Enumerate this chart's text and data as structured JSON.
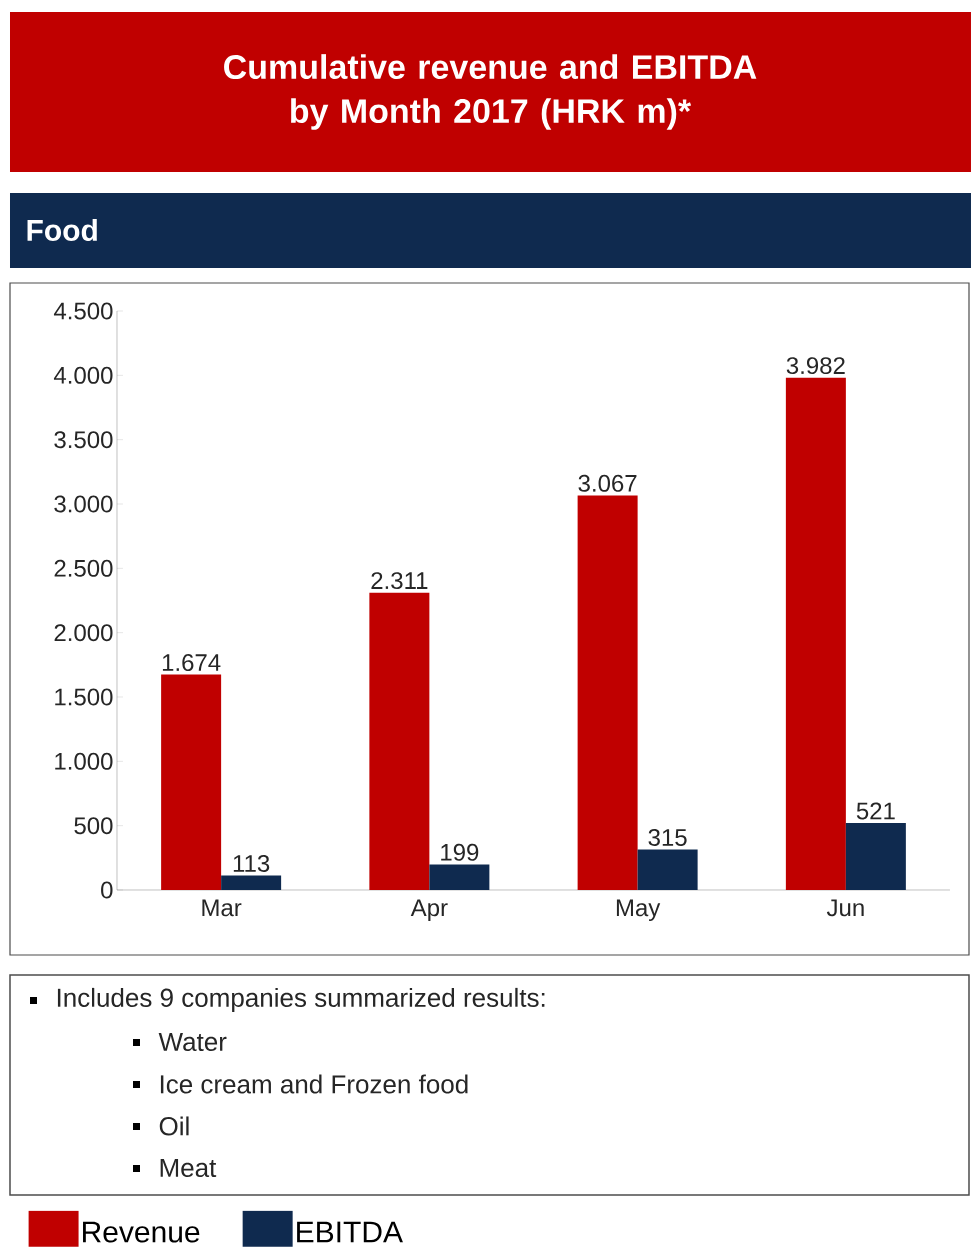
{
  "chart_data": {
    "type": "bar",
    "title": "Cumulative revenue and EBITDA by Month 2017 (HRK m)*",
    "subtitle": "Food",
    "categories": [
      "Mar",
      "Apr",
      "May",
      "Jun"
    ],
    "series": [
      {
        "name": "Revenue",
        "color": "#c00000",
        "values": [
          1674,
          2311,
          3067,
          3982
        ],
        "value_labels": [
          "1.674",
          "2.311",
          "3.067",
          "3.982"
        ]
      },
      {
        "name": "EBITDA",
        "color": "#0f2a4f",
        "values": [
          113,
          199,
          315,
          521
        ],
        "value_labels": [
          "113",
          "199",
          "315",
          "521"
        ]
      }
    ],
    "ylim": [
      0,
      4500
    ],
    "yticks": [
      0,
      500,
      {
        "value": 1000,
        "label": "1.000"
      },
      {
        "value": 1500,
        "label": "1.500"
      },
      {
        "value": 2000,
        "label": "2.000"
      },
      {
        "value": 2500,
        "label": "2.500"
      },
      {
        "value": 3000,
        "label": "3.000"
      },
      {
        "value": 3500,
        "label": "3.500"
      },
      {
        "value": 4000,
        "label": "4.000"
      },
      {
        "value": 4500,
        "label": "4.500"
      }
    ],
    "grid": false,
    "legend": "bottom",
    "annotations": [
      "Includes 9 companies summarized results:",
      "Water",
      "Ice cream and Frozen food",
      "Oil",
      "Meat"
    ]
  }
}
